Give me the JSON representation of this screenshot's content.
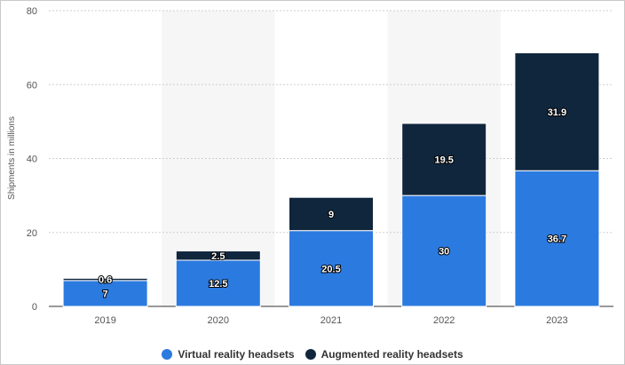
{
  "colors": {
    "vr": "#2b7ae0",
    "ar": "#10263d",
    "band": "#f6f6f6",
    "grid": "#cfcfcf",
    "axis_text": "#555555"
  },
  "chart_data": {
    "type": "bar",
    "stacked": true,
    "categories": [
      "2019",
      "2020",
      "2021",
      "2022",
      "2023"
    ],
    "series": [
      {
        "name": "Virtual reality headsets",
        "values": [
          7,
          12.5,
          20.5,
          30,
          36.7
        ],
        "color": "#2b7ae0"
      },
      {
        "name": "Augmented reality headsets",
        "values": [
          0.6,
          2.5,
          9,
          19.5,
          31.9
        ],
        "color": "#10263d"
      }
    ],
    "ylabel": "Shipments in millions",
    "ylim": [
      0,
      80
    ],
    "yticks": [
      0,
      20,
      40,
      60,
      80
    ],
    "grid": true,
    "legend": "bottom"
  }
}
